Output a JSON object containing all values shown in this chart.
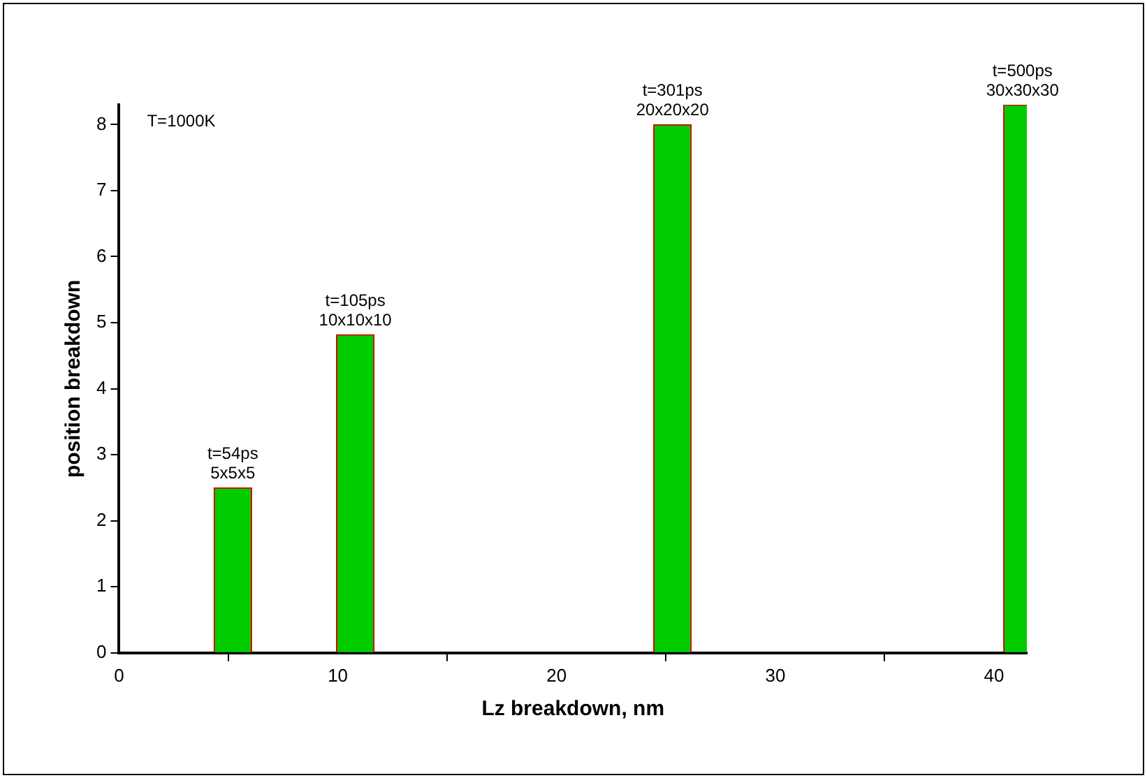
{
  "chart_data": {
    "type": "bar",
    "xlabel": "Lz breakdown, nm",
    "ylabel": "position breakdown",
    "x": [
      5.2,
      10.8,
      25.3,
      41.3
    ],
    "values": [
      2.5,
      4.82,
      8.0,
      8.3
    ],
    "color": "#00cc00",
    "xlim": [
      0,
      41.5
    ],
    "xticks": [
      0,
      10,
      20,
      30,
      40
    ],
    "ylim": [
      0,
      8.3
    ],
    "yticks": [
      0,
      1,
      2,
      3,
      4,
      5,
      6,
      7,
      8
    ],
    "grid": false,
    "legend": false,
    "annotations": [
      "T=1000K",
      {
        "text": "t=54ps\n5x5x5",
        "x": 5.2,
        "y": 2.5
      },
      {
        "text": "t=105ps\n10x10x10",
        "x": 10.8,
        "y": 4.82
      },
      {
        "text": "t=301ps\n20x20x20",
        "x": 25.3,
        "y": 8.0
      },
      {
        "text": "t=500ps\n30x30x30",
        "x": 41.3,
        "y": 8.3
      }
    ]
  }
}
